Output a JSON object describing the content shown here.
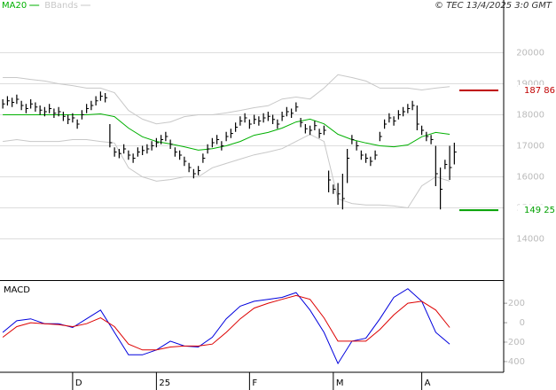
{
  "chart_data": {
    "type": "ohlc",
    "source": "© TEC 13/4/2025 3:0 GMT",
    "price": {
      "color": "#000000",
      "close": [
        18350,
        18450,
        18400,
        18500,
        18300,
        18200,
        18350,
        18250,
        18150,
        18100,
        18200,
        18050,
        18100,
        17950,
        17850,
        17900,
        17700,
        18000,
        18200,
        18300,
        18450,
        18600,
        18550,
        17100,
        16800,
        16750,
        16900,
        16700,
        16600,
        16800,
        16850,
        16900,
        17000,
        17100,
        17200,
        17300,
        17050,
        16800,
        16700,
        16500,
        16300,
        16100,
        16200,
        16600,
        16900,
        17100,
        17200,
        17000,
        17300,
        17400,
        17600,
        17800,
        17900,
        17700,
        17850,
        17800,
        17900,
        17950,
        17850,
        17700,
        17950,
        18100,
        18050,
        18250,
        17750,
        17550,
        17500,
        17650,
        17400,
        17500,
        15900,
        15600,
        15450,
        15300,
        16600,
        17200,
        17000,
        16700,
        16600,
        16500,
        16700,
        17300,
        17700,
        17900,
        17800,
        18000,
        18100,
        18200,
        18300,
        17700,
        17500,
        17300,
        17200,
        16100,
        15600,
        16400,
        16300,
        16800
      ],
      "high": [
        18500,
        18600,
        18550,
        18650,
        18450,
        18350,
        18500,
        18400,
        18300,
        18250,
        18350,
        18200,
        18250,
        18100,
        18000,
        18050,
        17850,
        18150,
        18350,
        18450,
        18600,
        18750,
        18700,
        17700,
        16950,
        16900,
        17050,
        16850,
        16750,
        16950,
        17000,
        17050,
        17150,
        17250,
        17350,
        17450,
        17200,
        16950,
        16850,
        16650,
        16450,
        16250,
        16350,
        16750,
        17050,
        17250,
        17350,
        17150,
        17450,
        17550,
        17750,
        17950,
        18050,
        17850,
        18000,
        17950,
        18050,
        18100,
        18000,
        17850,
        18100,
        18250,
        18200,
        18400,
        17900,
        17700,
        17650,
        17800,
        17550,
        17650,
        16200,
        15750,
        15800,
        16100,
        16900,
        17350,
        17150,
        16850,
        16750,
        16650,
        16850,
        17450,
        17850,
        18050,
        17950,
        18150,
        18250,
        18350,
        18450,
        18300,
        17650,
        17450,
        17350,
        17000,
        16300,
        16550,
        17000,
        17100
      ],
      "low": [
        18200,
        18300,
        18250,
        18350,
        18150,
        18050,
        18200,
        18100,
        18000,
        17950,
        18050,
        17900,
        17950,
        17800,
        17700,
        17750,
        17550,
        17850,
        18050,
        18150,
        18300,
        18450,
        18400,
        16950,
        16650,
        16600,
        16750,
        16550,
        16450,
        16650,
        16700,
        16750,
        16850,
        16950,
        17050,
        17150,
        16900,
        16650,
        16550,
        16350,
        16150,
        15950,
        16050,
        16450,
        16750,
        16950,
        17050,
        16850,
        17150,
        17250,
        17450,
        17650,
        17750,
        17550,
        17700,
        17650,
        17750,
        17800,
        17700,
        17550,
        17800,
        17950,
        17900,
        18100,
        17600,
        17400,
        17350,
        17500,
        17250,
        17350,
        15500,
        15450,
        15100,
        14950,
        15800,
        17050,
        16850,
        16550,
        16450,
        16350,
        16550,
        17150,
        17550,
        17750,
        17650,
        17850,
        17950,
        18050,
        18150,
        17500,
        17350,
        17150,
        17050,
        15700,
        14950,
        16250,
        15900,
        16400
      ]
    },
    "overlays": [
      {
        "name": "MA20",
        "color": "#00b000",
        "x": [
          0,
          3,
          6,
          9,
          12,
          15,
          18,
          21,
          24,
          27,
          30,
          33,
          36,
          39,
          42,
          45,
          48,
          51,
          54,
          57,
          60,
          63,
          66,
          69,
          72,
          75,
          78,
          81,
          84,
          87,
          90,
          93,
          96
        ],
        "values": [
          18000,
          18000,
          18000,
          18000,
          18000,
          18000,
          18000,
          18030,
          17940,
          17570,
          17290,
          17140,
          17060,
          16970,
          16860,
          16910,
          17000,
          17140,
          17340,
          17430,
          17570,
          17770,
          17860,
          17710,
          17370,
          17200,
          17090,
          17000,
          16970,
          17030,
          17290,
          17430,
          17370
        ]
      },
      {
        "name": "BBands",
        "color": "#c8c8c8",
        "x": [
          0,
          3,
          6,
          9,
          12,
          15,
          18,
          21,
          24,
          27,
          30,
          33,
          36,
          39,
          42,
          45,
          48,
          51,
          54,
          57,
          60,
          63,
          66,
          69,
          72,
          75,
          78,
          81,
          84,
          87,
          90,
          93,
          96
        ],
        "upper": [
          19200,
          19200,
          19140,
          19090,
          19000,
          18940,
          18860,
          18860,
          18710,
          18140,
          17860,
          17710,
          17770,
          17940,
          18000,
          18000,
          18060,
          18140,
          18230,
          18290,
          18510,
          18570,
          18510,
          18860,
          19290,
          19200,
          19090,
          18860,
          18860,
          18860,
          18800,
          18860,
          18910
        ],
        "lower": [
          17140,
          17200,
          17140,
          17140,
          17140,
          17200,
          17200,
          17140,
          17090,
          16290,
          16000,
          15860,
          15910,
          16000,
          16000,
          16290,
          16430,
          16570,
          16710,
          16800,
          16910,
          17140,
          17370,
          17140,
          15290,
          15140,
          15090,
          15090,
          15060,
          15000,
          15710,
          16000,
          15860
        ]
      }
    ],
    "markers": [
      {
        "value": 18786,
        "label": "187 86",
        "color": "#c00000"
      },
      {
        "value": 14925,
        "label": "149 25",
        "color": "#00a000"
      }
    ],
    "xlim": [
      -0.6,
      107.6
    ],
    "xticks": [
      {
        "value": 15,
        "label": "D"
      },
      {
        "value": 33,
        "label": "25"
      },
      {
        "value": 53,
        "label": "F"
      },
      {
        "value": 71,
        "label": "M"
      },
      {
        "value": 90,
        "label": "A"
      }
    ],
    "ylim": [
      12700,
      21300
    ],
    "yticks": [
      14000,
      15000,
      16000,
      17000,
      18000,
      19000,
      20000
    ],
    "grid": true,
    "macd": {
      "title": "MACD",
      "x": [
        0,
        3,
        6,
        9,
        12,
        15,
        18,
        21,
        24,
        27,
        30,
        33,
        36,
        39,
        42,
        45,
        48,
        51,
        54,
        57,
        60,
        63,
        66,
        69,
        72,
        75,
        78,
        81,
        84,
        87,
        90,
        93,
        96
      ],
      "series": [
        {
          "color": "#0000dd",
          "values": [
            -100,
            20,
            40,
            -10,
            -10,
            -50,
            40,
            130,
            -100,
            -330,
            -330,
            -280,
            -190,
            -240,
            -250,
            -150,
            40,
            170,
            220,
            240,
            260,
            310,
            130,
            -100,
            -420,
            -190,
            -160,
            40,
            260,
            350,
            220,
            -100,
            -220
          ]
        },
        {
          "color": "#dd0000",
          "values": [
            -150,
            -40,
            0,
            -10,
            -20,
            -40,
            -10,
            50,
            -40,
            -220,
            -280,
            -280,
            -250,
            -240,
            -240,
            -220,
            -100,
            40,
            150,
            200,
            240,
            280,
            240,
            50,
            -190,
            -190,
            -190,
            -70,
            80,
            200,
            220,
            130,
            -50
          ]
        }
      ],
      "ylim": [
        -510,
        420
      ],
      "yticks": [
        -400,
        -200,
        0,
        200
      ]
    }
  }
}
